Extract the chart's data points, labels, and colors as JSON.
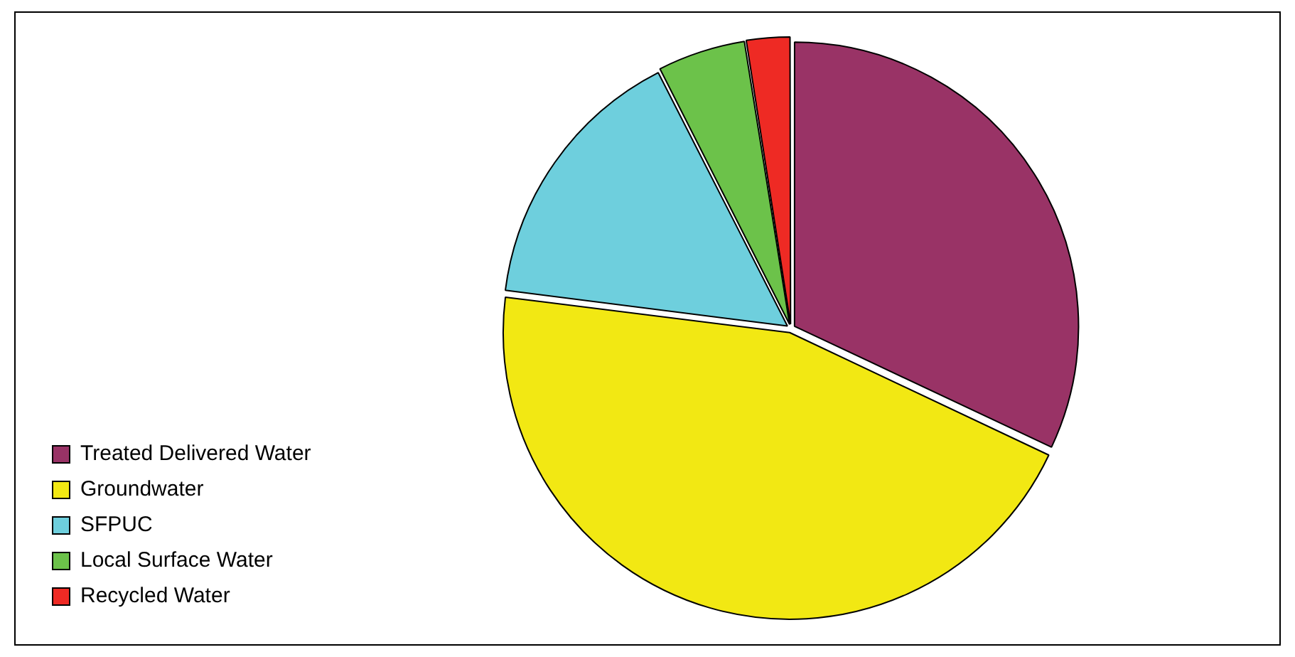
{
  "chart_data": {
    "type": "pie",
    "categories": [
      "Treated Delivered Water",
      "Groundwater",
      "SFPUC",
      "Local Surface Water",
      "Recycled Water"
    ],
    "values": [
      32,
      45,
      15.5,
      5,
      2.5
    ],
    "colors": [
      "#993366",
      "#f2e813",
      "#6ecfdd",
      "#6cc24a",
      "#ee2a24"
    ],
    "legend": "bottom left"
  }
}
